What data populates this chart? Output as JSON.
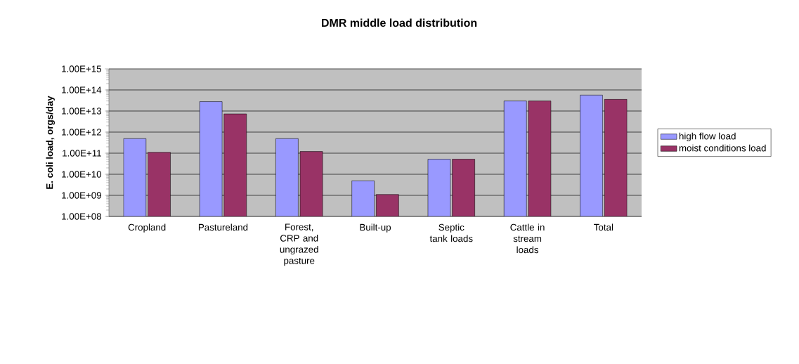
{
  "chart_data": {
    "type": "bar",
    "title": "DMR middle load distribution",
    "ylabel": "E. coli load, orgs/day",
    "categories": [
      "Cropland",
      "Pastureland",
      "Forest, CRP and ungrazed pasture",
      "Built-up",
      "Septic tank loads",
      "Cattle in stream loads",
      "Total"
    ],
    "series": [
      {
        "name": "high flow load",
        "color": "#9999ff",
        "values": [
          490000000000.0,
          28000000000000.0,
          490000000000.0,
          4900000000.0,
          52000000000.0,
          30000000000000.0,
          57000000000000.0
        ]
      },
      {
        "name": "moist conditions load",
        "color": "#993366",
        "values": [
          110000000000.0,
          7300000000000.0,
          120000000000.0,
          1100000000.0,
          52000000000.0,
          30000000000000.0,
          36000000000000.0
        ]
      }
    ],
    "log": true,
    "ylim": [
      100000000.0,
      1000000000000000.0
    ],
    "yticks": [
      {
        "value": 100000000.0,
        "label": "1.00E+08"
      },
      {
        "value": 1000000000.0,
        "label": "1.00E+09"
      },
      {
        "value": 10000000000.0,
        "label": "1.00E+10"
      },
      {
        "value": 100000000000.0,
        "label": "1.00E+11"
      },
      {
        "value": 1000000000000.0,
        "label": "1.00E+12"
      },
      {
        "value": 10000000000000.0,
        "label": "1.00E+13"
      },
      {
        "value": 100000000000000.0,
        "label": "1.00E+14"
      },
      {
        "value": 1000000000000000.0,
        "label": "1.00E+15"
      }
    ],
    "grid": "y",
    "legend": "right"
  }
}
